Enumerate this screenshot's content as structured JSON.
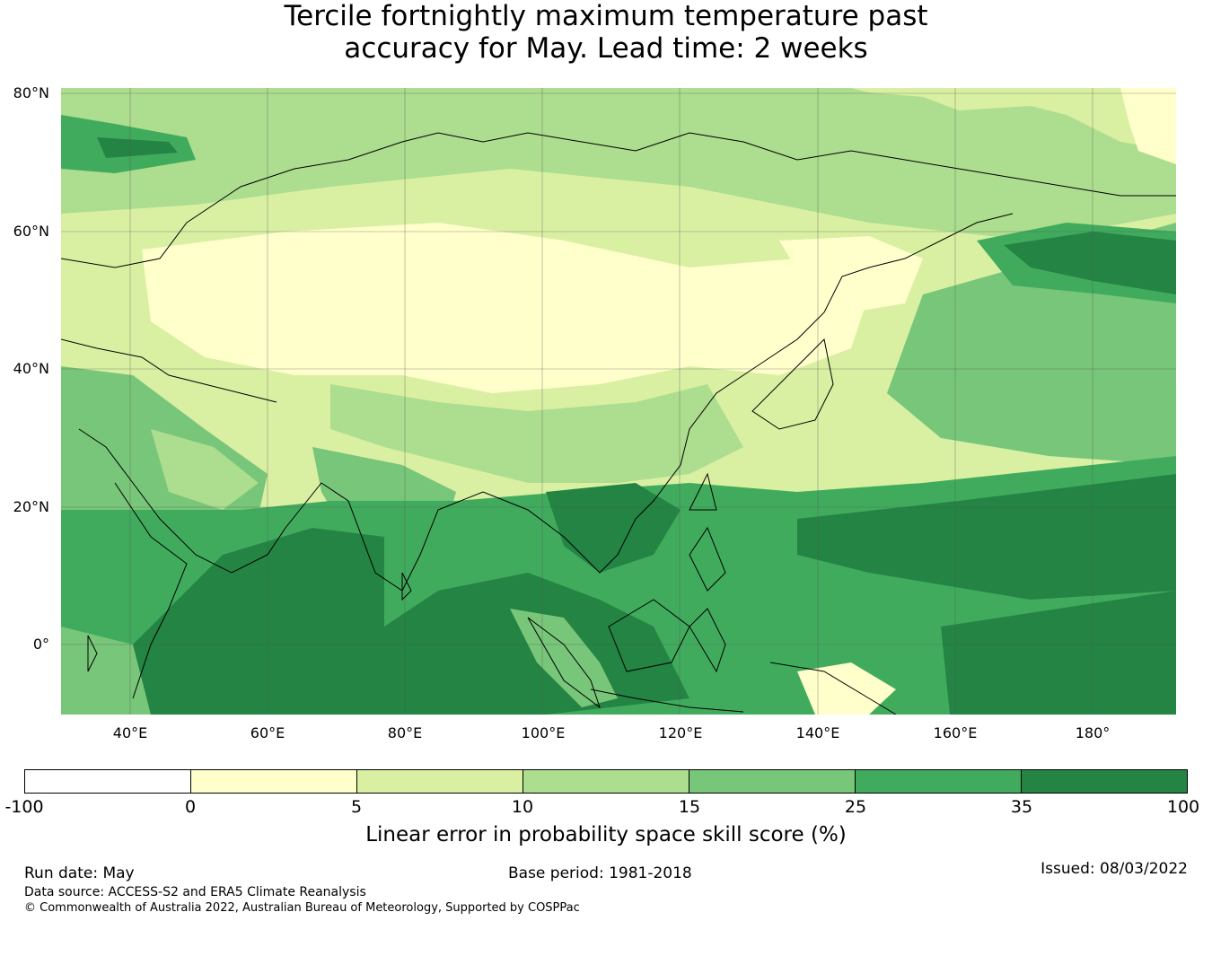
{
  "title": {
    "line1": "Tercile fortnightly maximum temperature past",
    "line2": "accuracy for May. Lead time: 2 weeks"
  },
  "map": {
    "lat_labels": [
      "80°N",
      "60°N",
      "40°N",
      "20°N",
      "0°"
    ],
    "lon_labels": [
      "40°E",
      "60°E",
      "80°E",
      "100°E",
      "120°E",
      "140°E",
      "160°E",
      "180°"
    ],
    "extent": {
      "lon_min": 30,
      "lon_max": 192,
      "lat_min": -10,
      "lat_max": 81
    },
    "gridlines": true
  },
  "colorbar": {
    "label": "Linear error in probability space skill score (%)",
    "ticks": [
      "-100",
      "0",
      "5",
      "10",
      "15",
      "25",
      "35",
      "100"
    ],
    "colors": [
      "#ffffff",
      "#ffffcc",
      "#d9f0a3",
      "#addd8e",
      "#78c679",
      "#41ab5d",
      "#238443"
    ]
  },
  "footer": {
    "run_date": "Run date: May",
    "base_period": "Base period: 1981-2018",
    "issued": "Issued: 08/03/2022",
    "data_source": "Data source: ACCESS-S2 and ERA5 Climate Reanalysis",
    "copyright": "© Commonwealth of Australia 2022, Australian Bureau of Meteorology, Supported by COSPPac"
  }
}
